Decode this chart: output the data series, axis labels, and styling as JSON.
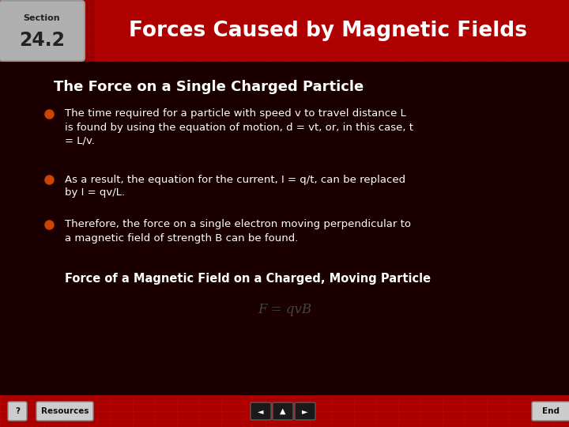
{
  "section_label": "Section",
  "section_number": "24.2",
  "header_title": "Forces Caused by Magnetic Fields",
  "slide_title": "The Force on a Single Charged Particle",
  "bullet1_lines": [
    "The time required for a particle with speed v to travel distance L",
    "is found by using the equation of motion, d = vt, or, in this case, t",
    "= L/v."
  ],
  "bullet2_lines": [
    "As a result, the equation for the current, I = q/t, can be replaced",
    "by I = qv/L."
  ],
  "bullet3_lines": [
    "Therefore, the force on a single electron moving perpendicular to",
    "a magnetic field of strength B can be found."
  ],
  "subheading": "Force of a Magnetic Field on a Charged, Moving Particle",
  "formula": "F = qvB",
  "bg_color": "#1a0000",
  "header_bg_left": "#8b0000",
  "header_bg_right": "#cc0000",
  "bullet_color": "#cc4400",
  "text_color": "#ffffff",
  "formula_color": "#444444",
  "footer_color": "#aa0000",
  "section_bg": "#b0b0b0",
  "section_text": "#222222",
  "grid_color": "#ff2222",
  "button_bg": "#cccccc",
  "nav_bg": "#111111"
}
